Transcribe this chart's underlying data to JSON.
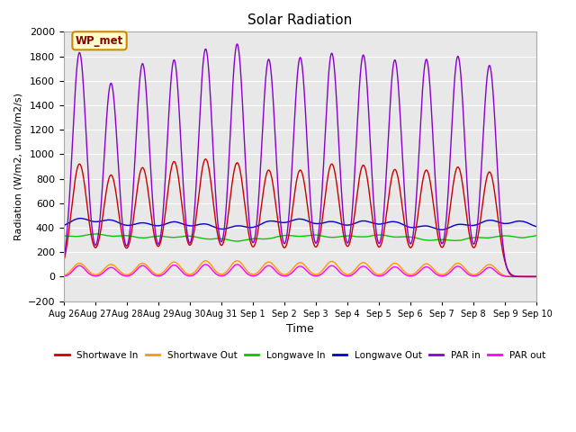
{
  "title": "Solar Radiation",
  "xlabel": "Time",
  "ylabel": "Radiation (W/m2, umol/m2/s)",
  "ylim": [
    -200,
    2000
  ],
  "yticks": [
    -200,
    0,
    200,
    400,
    600,
    800,
    1000,
    1200,
    1400,
    1600,
    1800,
    2000
  ],
  "xtick_labels": [
    "Aug 26",
    "Aug 27",
    "Aug 28",
    "Aug 29",
    "Aug 30",
    "Aug 31",
    "Sep 1",
    "Sep 2",
    "Sep 3",
    "Sep 4",
    "Sep 5",
    "Sep 6",
    "Sep 7",
    "Sep 8",
    "Sep 9",
    "Sep 10"
  ],
  "num_days": 15,
  "annotation_text": "WP_met",
  "annotation_bg": "#ffffcc",
  "annotation_border": "#cc8800",
  "series_colors": {
    "shortwave_in": "#cc0000",
    "shortwave_out": "#ff9900",
    "longwave_in": "#00cc00",
    "longwave_out": "#0000cc",
    "par_in": "#8800cc",
    "par_out": "#ff00ff"
  },
  "legend_labels": [
    "Shortwave In",
    "Shortwave Out",
    "Longwave In",
    "Longwave Out",
    "PAR in",
    "PAR out"
  ],
  "bg_color": "#e8e8e8",
  "grid_color": "#ffffff",
  "shortwave_in_peaks": [
    920,
    830,
    890,
    940,
    960,
    930,
    870,
    870,
    920,
    910,
    875,
    870,
    895,
    855
  ],
  "shortwave_out_peaks": [
    110,
    100,
    110,
    120,
    130,
    130,
    120,
    115,
    125,
    115,
    110,
    105,
    110,
    100
  ],
  "par_in_peaks": [
    1830,
    1580,
    1740,
    1770,
    1860,
    1900,
    1775,
    1790,
    1825,
    1810,
    1770,
    1775,
    1800,
    1725
  ],
  "par_out_peaks": [
    90,
    75,
    90,
    95,
    100,
    100,
    90,
    85,
    90,
    85,
    80,
    80,
    85,
    75
  ],
  "longwave_in_base": 340,
  "longwave_out_base": 390
}
